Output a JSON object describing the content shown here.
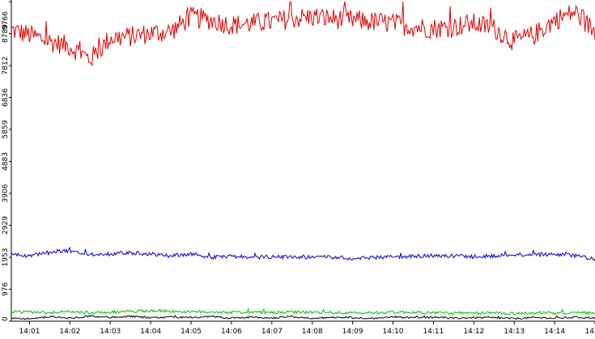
{
  "chart_data": {
    "type": "line",
    "title": "",
    "xlabel": "",
    "ylabel": "",
    "grid": false,
    "legend": "none",
    "xlim": [
      "14:00:33",
      "14:15:00"
    ],
    "ylim": [
      0,
      9766
    ],
    "y_ticks": [
      "0",
      "976",
      "1953",
      "2929",
      "3906",
      "4883",
      "5859",
      "6836",
      "7812",
      "8789",
      "9766"
    ],
    "x_ticks": [
      {
        "label": "14:01",
        "t": "14:01:00"
      },
      {
        "label": "14:02",
        "t": "14:02:00"
      },
      {
        "label": "14:03",
        "t": "14:03:00"
      },
      {
        "label": "14:04",
        "t": "14:04:00"
      },
      {
        "label": "14:05",
        "t": "14:05:00"
      },
      {
        "label": "14:06",
        "t": "14:06:00"
      },
      {
        "label": "14:07",
        "t": "14:07:00"
      },
      {
        "label": "14:08",
        "t": "14:08:00"
      },
      {
        "label": "14:09",
        "t": "14:09:00"
      },
      {
        "label": "14:10",
        "t": "14:10:00"
      },
      {
        "label": "14:11",
        "t": "14:11:00"
      },
      {
        "label": "14:12",
        "t": "14:12:00"
      },
      {
        "label": "14:13",
        "t": "14:13:00"
      },
      {
        "label": "14:14",
        "t": "14:14:00"
      },
      {
        "label": "14",
        "t": "14:15:00"
      }
    ],
    "series": [
      {
        "color": "#e00000",
        "x": [
          "14:00:33",
          "14:01:00",
          "14:01:30",
          "14:02:00",
          "14:02:30",
          "14:03:00",
          "14:03:30",
          "14:04:00",
          "14:04:30",
          "14:05:00",
          "14:05:30",
          "14:06:00",
          "14:06:30",
          "14:07:00",
          "14:07:30",
          "14:08:00",
          "14:08:30",
          "14:09:00",
          "14:09:30",
          "14:10:00",
          "14:10:30",
          "14:11:00",
          "14:11:30",
          "14:12:00",
          "14:12:30",
          "14:13:00",
          "14:13:30",
          "14:14:00",
          "14:14:30",
          "14:15:00"
        ],
        "y": [
          8900,
          8750,
          8550,
          8400,
          8000,
          8650,
          8700,
          8800,
          8850,
          9300,
          9200,
          9050,
          9100,
          9150,
          9250,
          9300,
          9250,
          9200,
          9150,
          9100,
          9000,
          8950,
          9000,
          9100,
          8950,
          8550,
          8750,
          9200,
          9450,
          8850
        ]
      },
      {
        "color": "#0000c0",
        "x": [
          "14:00:33",
          "14:01:00",
          "14:01:30",
          "14:02:00",
          "14:02:30",
          "14:03:00",
          "14:03:30",
          "14:04:00",
          "14:04:30",
          "14:05:00",
          "14:05:30",
          "14:06:00",
          "14:06:30",
          "14:07:00",
          "14:07:30",
          "14:08:00",
          "14:08:30",
          "14:09:00",
          "14:09:30",
          "14:10:00",
          "14:10:30",
          "14:11:00",
          "14:11:30",
          "14:12:00",
          "14:12:30",
          "14:13:00",
          "14:13:30",
          "14:14:00",
          "14:14:30",
          "14:15:00"
        ],
        "y": [
          2050,
          2000,
          2100,
          2150,
          2050,
          2050,
          2100,
          2050,
          2000,
          2050,
          1950,
          1980,
          1950,
          1970,
          1950,
          1960,
          1950,
          1920,
          1940,
          1960,
          1980,
          2000,
          2000,
          1970,
          2000,
          2050,
          2030,
          2050,
          2000,
          1900
        ]
      },
      {
        "color": "#00c000",
        "x": [
          "14:00:33",
          "14:01:00",
          "14:01:30",
          "14:02:00",
          "14:02:30",
          "14:03:00",
          "14:03:30",
          "14:04:00",
          "14:04:30",
          "14:05:00",
          "14:05:30",
          "14:06:00",
          "14:06:30",
          "14:07:00",
          "14:07:30",
          "14:08:00",
          "14:08:30",
          "14:09:00",
          "14:09:30",
          "14:10:00",
          "14:10:30",
          "14:11:00",
          "14:11:30",
          "14:12:00",
          "14:12:30",
          "14:13:00",
          "14:13:30",
          "14:14:00",
          "14:14:30",
          "14:15:00"
        ],
        "y": [
          300,
          270,
          260,
          290,
          250,
          280,
          300,
          320,
          310,
          280,
          290,
          270,
          280,
          260,
          280,
          270,
          260,
          250,
          260,
          280,
          270,
          260,
          250,
          240,
          260,
          240,
          250,
          240,
          260,
          250
        ]
      },
      {
        "color": "#000000",
        "x": [
          "14:00:33",
          "14:01:00",
          "14:01:30",
          "14:02:00",
          "14:02:30",
          "14:03:00",
          "14:03:30",
          "14:04:00",
          "14:04:30",
          "14:05:00",
          "14:05:30",
          "14:06:00",
          "14:06:30",
          "14:07:00",
          "14:07:30",
          "14:08:00",
          "14:08:30",
          "14:09:00",
          "14:09:30",
          "14:10:00",
          "14:10:30",
          "14:11:00",
          "14:11:30",
          "14:12:00",
          "14:12:30",
          "14:13:00",
          "14:13:30",
          "14:14:00",
          "14:14:30",
          "14:15:00"
        ],
        "y": [
          110,
          60,
          140,
          90,
          160,
          120,
          150,
          100,
          130,
          110,
          150,
          90,
          120,
          100,
          140,
          80,
          120,
          110,
          90,
          130,
          100,
          120,
          90,
          110,
          100,
          80,
          110,
          90,
          120,
          100
        ]
      }
    ]
  }
}
